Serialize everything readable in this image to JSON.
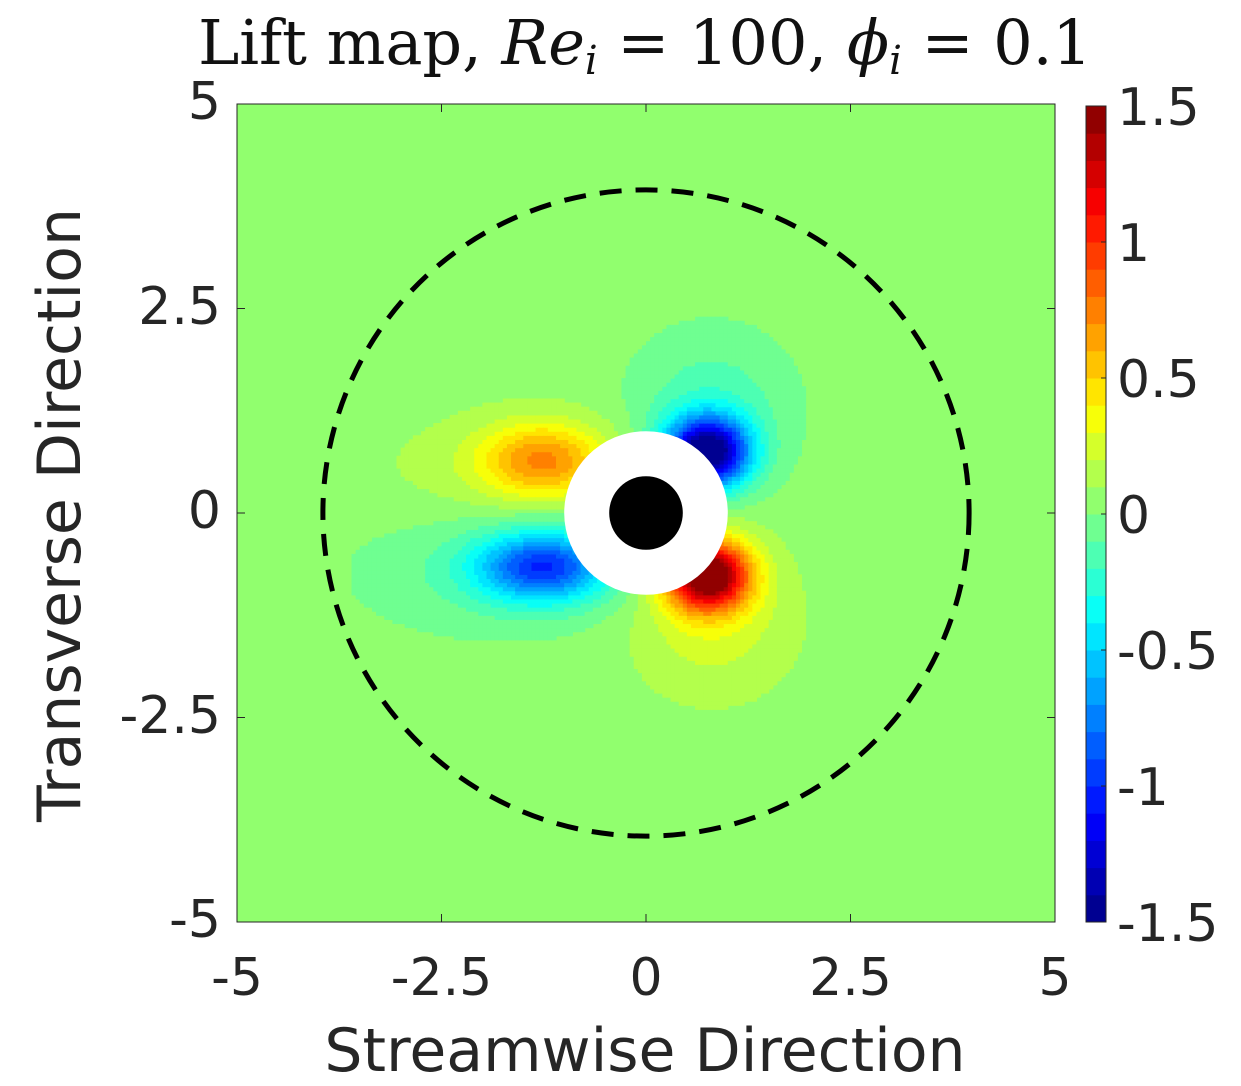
{
  "chart_data": {
    "type": "heatmap",
    "title_prefix": "Lift map, ",
    "title_re_symbol": "Re",
    "title_re_sub": "i",
    "title_re_eq": " = 100, ",
    "title_phi_symbol": "ϕ",
    "title_phi_sub": "i",
    "title_phi_eq": " = 0.1",
    "xlabel": "Streamwise Direction",
    "ylabel": "Transverse Direction",
    "xlim": [
      -5,
      5
    ],
    "ylim": [
      -5,
      5
    ],
    "x_ticks": [
      -5,
      -2.5,
      0,
      2.5,
      5
    ],
    "x_tick_labels": [
      "-5",
      "-2.5",
      "0",
      "2.5",
      "5"
    ],
    "y_ticks": [
      5,
      2.5,
      0,
      -2.5,
      -5
    ],
    "y_tick_labels": [
      "5",
      "2.5",
      "0",
      "-2.5",
      "-5"
    ],
    "colorbar": {
      "range": [
        -1.5,
        1.5
      ],
      "levels": 30,
      "ticks": [
        1.5,
        1,
        0.5,
        0,
        -0.5,
        -1,
        -1.5
      ],
      "tick_labels": [
        "1.5",
        "1",
        "0.5",
        "0",
        "-0.5",
        "-1",
        "-1.5"
      ],
      "colormap": "jet"
    },
    "particle_radius": 0.5,
    "excluded_radius": 1.0,
    "dashed_circle_radius": 3.95,
    "background_value": 0.05,
    "features": [
      {
        "label": "top-left lobe",
        "x": -1.3,
        "y": 0.65,
        "value": 0.6
      },
      {
        "label": "bottom-left lobe",
        "x": -1.3,
        "y": -0.65,
        "value": -0.85
      },
      {
        "label": "top-right lobe",
        "x": 0.75,
        "y": 0.85,
        "value": -1.5
      },
      {
        "label": "bottom-right lobe",
        "x": 0.75,
        "y": -0.85,
        "value": 1.5
      }
    ],
    "colors": {
      "particle": "#000000",
      "excluded": "#ffffff",
      "dashed_circle": "#000000"
    }
  }
}
